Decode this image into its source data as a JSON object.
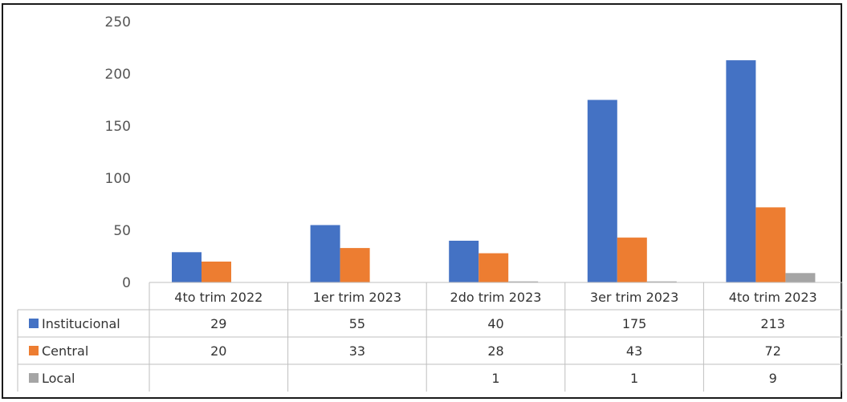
{
  "chart_data": {
    "type": "bar",
    "categories": [
      "4to trim 2022",
      "1er trim 2023",
      "2do trim 2023",
      "3er trim 2023",
      "4to trim 2023"
    ],
    "series": [
      {
        "name": "Institucional",
        "color": "#4472C4",
        "values": [
          29,
          55,
          40,
          175,
          213
        ]
      },
      {
        "name": "Central",
        "color": "#ED7D31",
        "values": [
          20,
          33,
          28,
          43,
          72
        ]
      },
      {
        "name": "Local",
        "color": "#A5A5A5",
        "values": [
          null,
          null,
          1,
          1,
          9
        ]
      }
    ],
    "ylim": [
      0,
      250
    ],
    "yticks": [
      0,
      50,
      100,
      150,
      200,
      250
    ],
    "grid": false,
    "legend": "data-table",
    "data_table": {
      "rows": [
        {
          "label": "Institucional",
          "cells": [
            "29",
            "55",
            "40",
            "175",
            "213"
          ]
        },
        {
          "label": "Central",
          "cells": [
            "20",
            "33",
            "28",
            "43",
            "72"
          ]
        },
        {
          "label": "Local",
          "cells": [
            "",
            "",
            "1",
            "1",
            "9"
          ]
        }
      ]
    }
  }
}
